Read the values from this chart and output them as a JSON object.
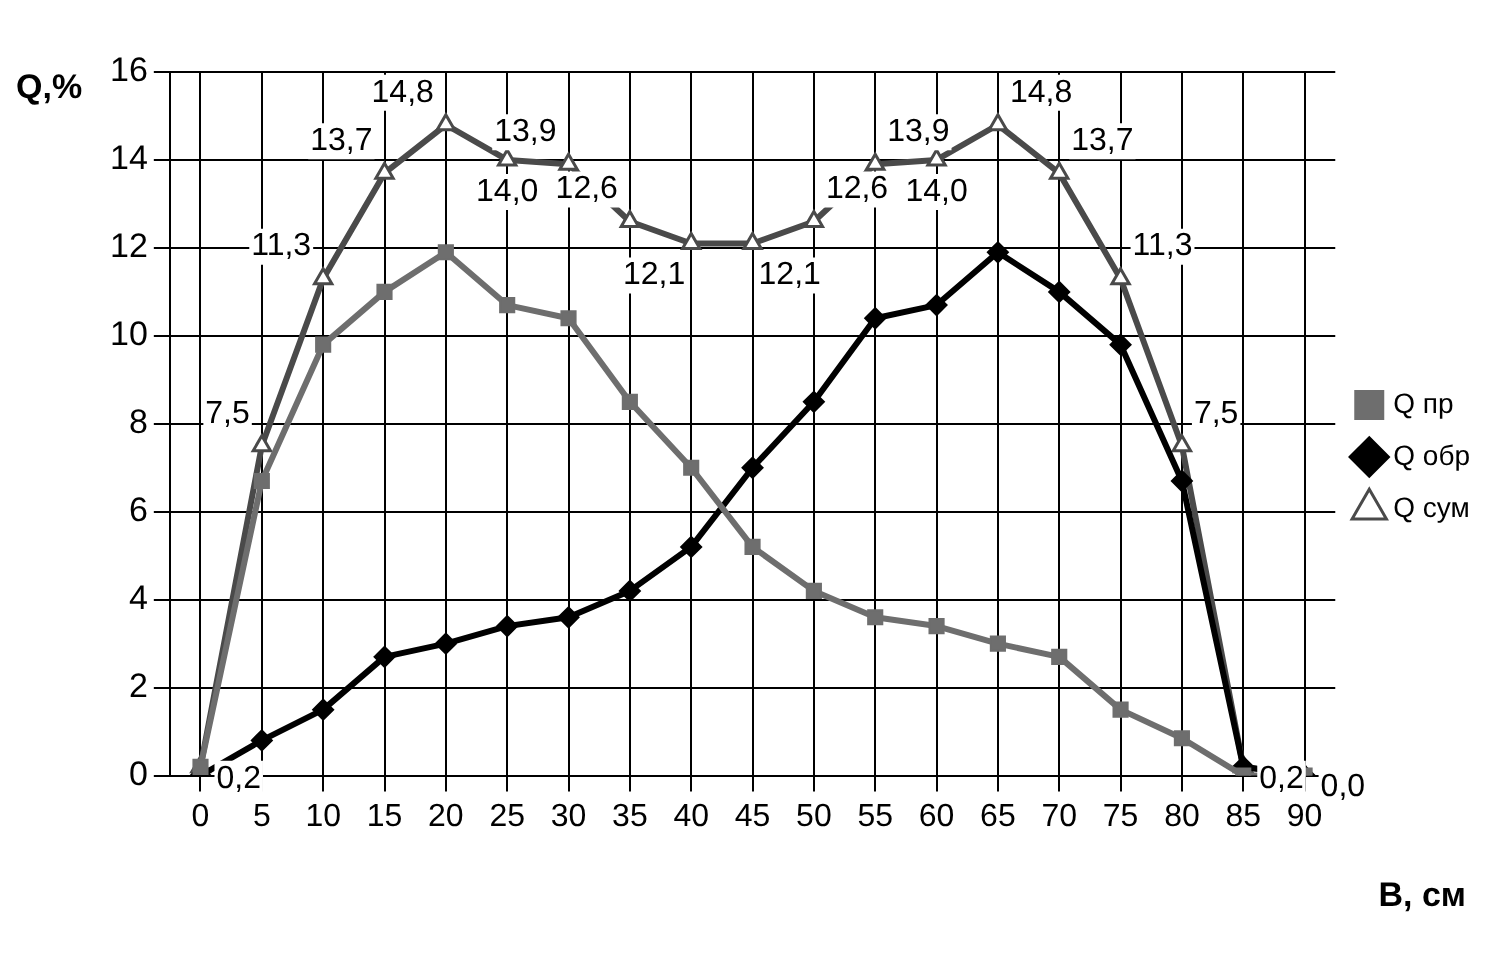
{
  "chart_data": {
    "type": "line",
    "xlabel": "B, см",
    "ylabel": "Q,%",
    "categories": [
      "0",
      "5",
      "10",
      "15",
      "20",
      "25",
      "30",
      "35",
      "40",
      "45",
      "50",
      "55",
      "60",
      "65",
      "70",
      "75",
      "80",
      "85",
      "90"
    ],
    "series": [
      {
        "name": "Q пр",
        "color": "#6e6e6e",
        "marker": "square",
        "values": [
          0.2,
          6.7,
          9.8,
          11.0,
          11.9,
          10.7,
          10.4,
          8.5,
          7.0,
          5.2,
          4.2,
          3.6,
          3.4,
          3.0,
          2.7,
          1.5,
          0.85,
          0.0,
          0.0
        ]
      },
      {
        "name": "Q обр",
        "color": "#000000",
        "marker": "diamond",
        "values": [
          0.0,
          0.8,
          1.5,
          2.7,
          3.0,
          3.4,
          3.6,
          4.2,
          5.2,
          7.0,
          8.5,
          10.4,
          10.7,
          11.9,
          11.0,
          9.8,
          6.7,
          0.2,
          0.0
        ]
      },
      {
        "name": "Q сум",
        "color": "#4a4a4a",
        "marker": "triangle",
        "values": [
          0.2,
          7.5,
          11.3,
          13.7,
          14.8,
          14.0,
          13.9,
          12.6,
          12.1,
          12.1,
          12.6,
          13.9,
          14.0,
          14.8,
          13.7,
          11.3,
          7.5,
          0.2,
          0.0
        ],
        "value_labels": [
          "0,2",
          "7,5",
          "11,3",
          "13,7",
          "14,8",
          "14,0",
          "13,9",
          "12,6",
          "12,1",
          "12,1",
          "12,6",
          "13,9",
          "14,0",
          "14,8",
          "13,7",
          "11,3",
          "7,5",
          "0,2",
          "0,0"
        ]
      }
    ],
    "ylim": [
      0,
      16
    ],
    "yticks": [
      0,
      2,
      4,
      6,
      8,
      10,
      12,
      14,
      16
    ],
    "grid": true,
    "legend": "right",
    "line_style": "solid"
  }
}
